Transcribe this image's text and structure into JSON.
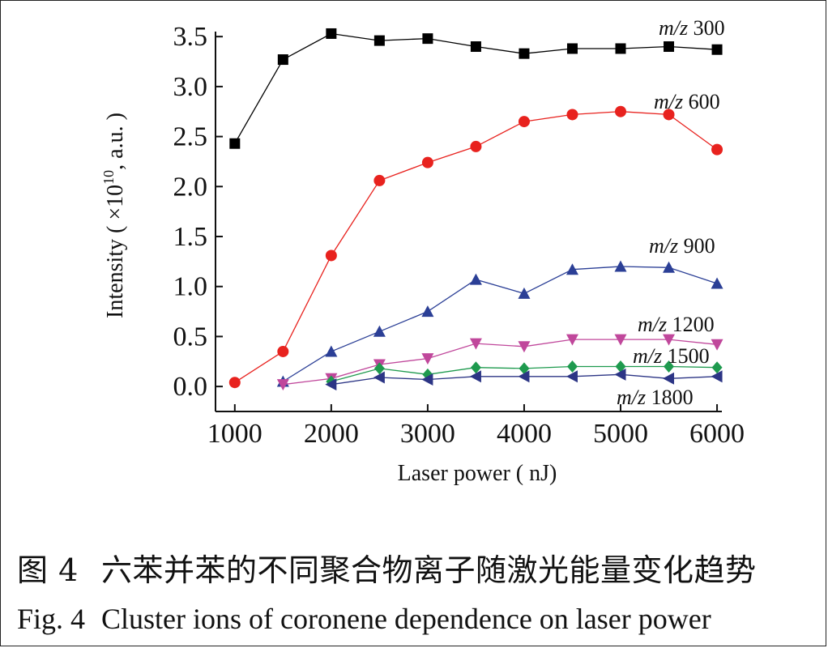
{
  "chart_data": {
    "type": "line",
    "xlabel": "Laser power ( nJ)",
    "ylabel": "Intensity ( ×10",
    "ylabel_sup": "10",
    "ylabel_tail": ", a.u. )",
    "xlim": [
      800,
      6050
    ],
    "ylim": [
      -0.25,
      3.55
    ],
    "x_ticks": [
      "1000",
      "2000",
      "3000",
      "4000",
      "5000",
      "6000"
    ],
    "x_tick_values": [
      1000,
      2000,
      3000,
      4000,
      5000,
      6000
    ],
    "y_ticks": [
      "0.0",
      "0.5",
      "1.0",
      "1.5",
      "2.0",
      "2.5",
      "3.0",
      "3.5"
    ],
    "y_tick_values": [
      0,
      0.5,
      1.0,
      1.5,
      2.0,
      2.5,
      3.0,
      3.5
    ],
    "grid": false,
    "series": [
      {
        "name": "m/z 300",
        "label_italic": "m/z",
        "label_num": "300",
        "color": "#000000",
        "marker": "square",
        "x": [
          1000,
          1500,
          2000,
          2500,
          3000,
          3500,
          4000,
          4500,
          5000,
          5500,
          6000
        ],
        "y": [
          2.43,
          3.27,
          3.53,
          3.46,
          3.48,
          3.4,
          3.33,
          3.38,
          3.38,
          3.4,
          3.37
        ]
      },
      {
        "name": "m/z 600",
        "label_italic": "m/z",
        "label_num": "600",
        "color": "#e8221e",
        "marker": "circle",
        "x": [
          1000,
          1500,
          2000,
          2500,
          3000,
          3500,
          4000,
          4500,
          5000,
          5500,
          6000
        ],
        "y": [
          0.04,
          0.35,
          1.31,
          2.06,
          2.24,
          2.4,
          2.65,
          2.72,
          2.75,
          2.72,
          2.37
        ]
      },
      {
        "name": "m/z 900",
        "label_italic": "m/z",
        "label_num": "900",
        "color": "#2b3f96",
        "marker": "triangle-up",
        "x": [
          1500,
          2000,
          2500,
          3000,
          3500,
          4000,
          4500,
          5000,
          5500,
          6000
        ],
        "y": [
          0.05,
          0.35,
          0.55,
          0.75,
          1.07,
          0.93,
          1.17,
          1.2,
          1.19,
          1.03
        ]
      },
      {
        "name": "m/z 1200",
        "label_italic": "m/z",
        "label_num": "1200",
        "color": "#c0479b",
        "marker": "triangle-down",
        "x": [
          1500,
          2000,
          2500,
          3000,
          3500,
          4000,
          4500,
          5000,
          5500,
          6000
        ],
        "y": [
          0.02,
          0.08,
          0.22,
          0.28,
          0.43,
          0.4,
          0.47,
          0.47,
          0.47,
          0.42
        ]
      },
      {
        "name": "m/z 1500",
        "label_italic": "m/z",
        "label_num": "1500",
        "color": "#1e9a4e",
        "marker": "diamond",
        "x": [
          2000,
          2500,
          3000,
          3500,
          4000,
          4500,
          5000,
          5500,
          6000
        ],
        "y": [
          0.05,
          0.18,
          0.12,
          0.19,
          0.18,
          0.2,
          0.2,
          0.2,
          0.19
        ]
      },
      {
        "name": "m/z 1800",
        "label_italic": "m/z",
        "label_num": "1800",
        "color": "#2c3585",
        "marker": "triangle-left",
        "x": [
          2000,
          2500,
          3000,
          3500,
          4000,
          4500,
          5000,
          5500,
          6000
        ],
        "y": [
          0.02,
          0.09,
          0.07,
          0.1,
          0.1,
          0.1,
          0.12,
          0.08,
          0.1
        ]
      }
    ]
  },
  "caption": {
    "cn_num": "图 4",
    "cn_text": "六苯并苯的不同聚合物离子随激光能量变化趋势",
    "en_num": "Fig. 4",
    "en_text": "Cluster ions of coronene dependence on laser power"
  }
}
